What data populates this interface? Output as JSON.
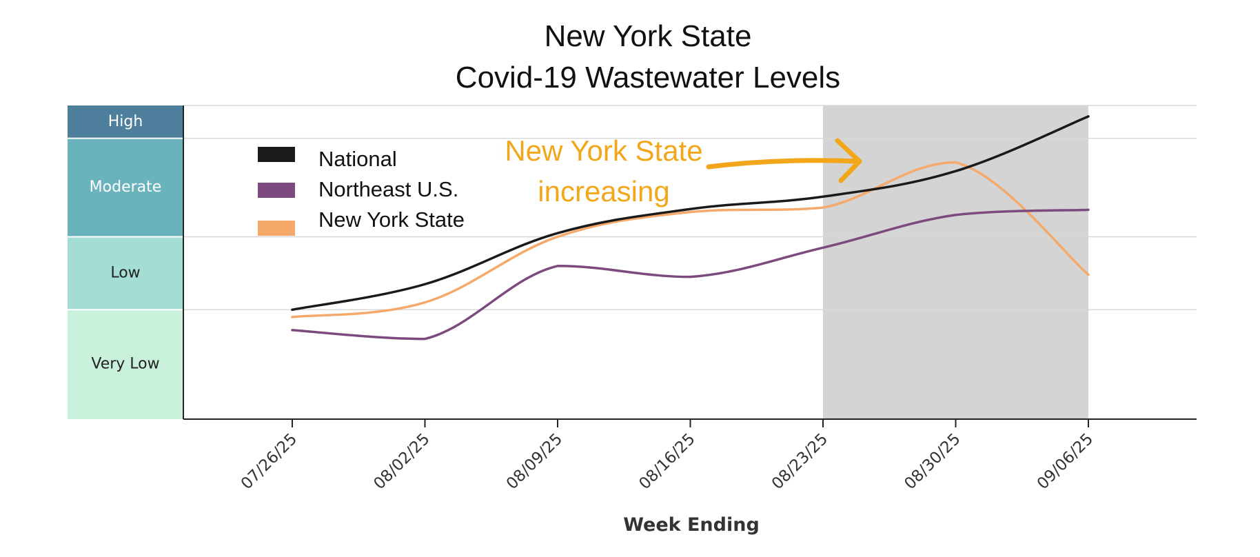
{
  "chart_data": {
    "type": "line",
    "title_lines": [
      "New York State",
      "Covid-19 Wastewater Levels"
    ],
    "xlabel": "Week Ending",
    "ylabel": "",
    "categories": [
      "07/26/25",
      "08/02/25",
      "08/09/25",
      "08/16/25",
      "08/23/25",
      "08/30/25",
      "09/06/25"
    ],
    "levels": [
      {
        "label": "Very Low",
        "from": 0,
        "to": 1.5,
        "color": "#c8f0da",
        "text_color": "#222222"
      },
      {
        "label": "Low",
        "from": 1.5,
        "to": 2.5,
        "color": "#a3ddd3",
        "text_color": "#222222"
      },
      {
        "label": "Moderate",
        "from": 2.5,
        "to": 3.85,
        "color": "#6ab3bd",
        "text_color": "#ffffff"
      },
      {
        "label": "High",
        "from": 3.85,
        "to": 4.3,
        "color": "#4d7e9b",
        "text_color": "#ffffff"
      }
    ],
    "ylim": [
      0,
      4.3
    ],
    "grid": true,
    "series": [
      {
        "name": "National",
        "color": "#1a1a1a",
        "values": [
          1.5,
          1.85,
          2.55,
          2.88,
          3.05,
          3.4,
          4.15
        ]
      },
      {
        "name": "Northeast U.S.",
        "color": "#7c4a7e",
        "values": [
          1.22,
          1.1,
          2.1,
          1.95,
          2.35,
          2.8,
          2.87
        ]
      },
      {
        "name": "New York State",
        "color": "#f5a96a",
        "values": [
          1.4,
          1.6,
          2.5,
          2.84,
          2.9,
          3.52,
          1.98
        ]
      }
    ],
    "legend_position": "top-left",
    "highlight": {
      "from": "08/23/25",
      "to": "09/06/25",
      "color": "#d4d4d4"
    },
    "annotation": {
      "lines": [
        "New York State",
        "increasing"
      ],
      "color": "#f2a71b"
    }
  }
}
